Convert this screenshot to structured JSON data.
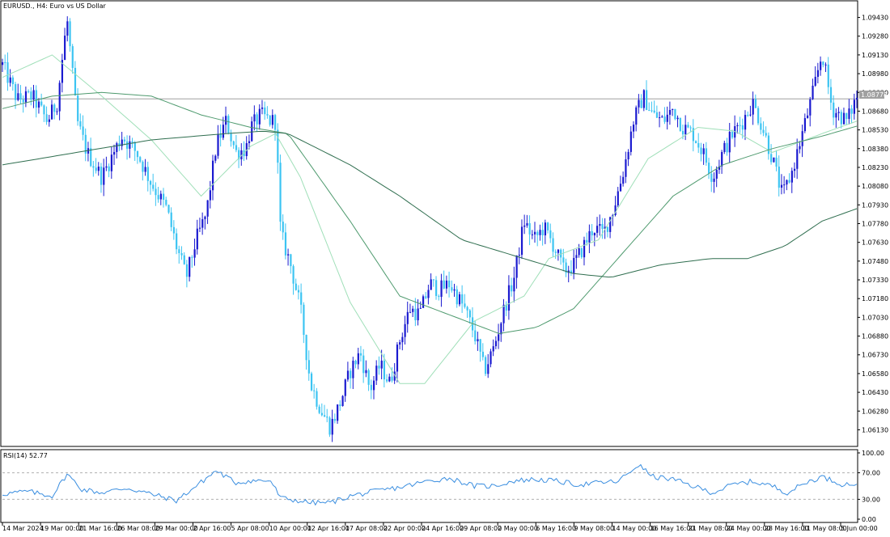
{
  "chart_data": {
    "type": "candlestick",
    "title": "EURUSD., H4:  Euro vs US Dollar",
    "current_price_label": "1.08778",
    "current_price": 1.08778,
    "ylim": [
      1.0601,
      1.0955
    ],
    "y_ticks": [
      "1.09430",
      "1.09280",
      "1.09130",
      "1.08980",
      "1.08830",
      "1.08680",
      "1.08530",
      "1.08380",
      "1.08230",
      "1.08080",
      "1.07930",
      "1.07780",
      "1.07630",
      "1.07480",
      "1.07330",
      "1.07180",
      "1.07030",
      "1.06880",
      "1.06730",
      "1.06580",
      "1.06430",
      "1.06280",
      "1.06130"
    ],
    "x_ticks": [
      "14 Mar 2024",
      "19 Mar 00:00",
      "21 Mar 16:00",
      "26 Mar 08:00",
      "29 Mar 00:00",
      "2 Apr 16:00",
      "5 Apr 08:00",
      "10 Apr 00:00",
      "12 Apr 16:00",
      "17 Apr 08:00",
      "22 Apr 00:00",
      "24 Apr 16:00",
      "29 Apr 08:00",
      "2 May 00:00",
      "6 May 16:00",
      "9 May 08:00",
      "14 May 00:00",
      "16 May 16:00",
      "21 May 08:00",
      "24 May 00:00",
      "28 May 16:00",
      "31 May 08:00",
      "5 Jun 00:00"
    ],
    "bar_count": 330,
    "bull_color": "#1a1ad0",
    "bear_color": "#3cc4f2",
    "ma_colors": [
      "#9fdfb8",
      "#4e9a6e",
      "#2f6e4f"
    ],
    "close_path": [
      [
        0,
        1.0905
      ],
      [
        6,
        1.0877
      ],
      [
        12,
        1.088
      ],
      [
        18,
        1.086
      ],
      [
        22,
        1.0875
      ],
      [
        26,
        1.0942
      ],
      [
        30,
        1.086
      ],
      [
        34,
        1.0835
      ],
      [
        40,
        1.0815
      ],
      [
        48,
        1.0848
      ],
      [
        54,
        1.0835
      ],
      [
        60,
        1.081
      ],
      [
        66,
        1.079
      ],
      [
        70,
        1.076
      ],
      [
        74,
        1.0735
      ],
      [
        78,
        1.0765
      ],
      [
        82,
        1.0785
      ],
      [
        86,
        1.084
      ],
      [
        90,
        1.086
      ],
      [
        94,
        1.0835
      ],
      [
        98,
        1.0838
      ],
      [
        100,
        1.0855
      ],
      [
        104,
        1.0865
      ],
      [
        108,
        1.086
      ],
      [
        110,
        1.086
      ],
      [
        112,
        1.077
      ],
      [
        116,
        1.0745
      ],
      [
        120,
        1.071
      ],
      [
        124,
        1.065
      ],
      [
        128,
        1.063
      ],
      [
        132,
        1.0615
      ],
      [
        136,
        1.0635
      ],
      [
        140,
        1.066
      ],
      [
        144,
        1.0675
      ],
      [
        148,
        1.0645
      ],
      [
        152,
        1.0665
      ],
      [
        156,
        1.065
      ],
      [
        160,
        1.0685
      ],
      [
        164,
        1.071
      ],
      [
        168,
        1.0705
      ],
      [
        172,
        1.073
      ],
      [
        176,
        1.0725
      ],
      [
        180,
        1.073
      ],
      [
        186,
        1.071
      ],
      [
        190,
        1.069
      ],
      [
        194,
        1.066
      ],
      [
        198,
        1.068
      ],
      [
        202,
        1.071
      ],
      [
        206,
        1.0735
      ],
      [
        210,
        1.078
      ],
      [
        214,
        1.0765
      ],
      [
        218,
        1.0775
      ],
      [
        222,
        1.076
      ],
      [
        226,
        1.074
      ],
      [
        230,
        1.0745
      ],
      [
        234,
        1.076
      ],
      [
        238,
        1.0775
      ],
      [
        242,
        1.077
      ],
      [
        246,
        1.079
      ],
      [
        250,
        1.082
      ],
      [
        254,
        1.086
      ],
      [
        258,
        1.088
      ],
      [
        262,
        1.0865
      ],
      [
        266,
        1.086
      ],
      [
        270,
        1.087
      ],
      [
        274,
        1.0855
      ],
      [
        278,
        1.085
      ],
      [
        282,
        1.0835
      ],
      [
        286,
        1.0815
      ],
      [
        290,
        1.0835
      ],
      [
        294,
        1.085
      ],
      [
        298,
        1.086
      ],
      [
        302,
        1.0875
      ],
      [
        306,
        1.0855
      ],
      [
        310,
        1.083
      ],
      [
        314,
        1.08
      ],
      [
        318,
        1.082
      ],
      [
        322,
        1.085
      ],
      [
        326,
        1.088
      ],
      [
        330,
        1.0915
      ],
      [
        334,
        1.087
      ],
      [
        340,
        1.086
      ],
      [
        344,
        1.088
      ]
    ],
    "ma_fast": [
      [
        0,
        1.0895
      ],
      [
        20,
        1.0913
      ],
      [
        40,
        1.088
      ],
      [
        60,
        1.0845
      ],
      [
        80,
        1.08
      ],
      [
        100,
        1.084
      ],
      [
        110,
        1.085
      ],
      [
        120,
        1.0815
      ],
      [
        140,
        1.0715
      ],
      [
        160,
        1.065
      ],
      [
        170,
        1.065
      ],
      [
        190,
        1.07
      ],
      [
        210,
        1.072
      ],
      [
        220,
        1.075
      ],
      [
        240,
        1.0765
      ],
      [
        260,
        1.083
      ],
      [
        280,
        1.0855
      ],
      [
        295,
        1.0852
      ],
      [
        310,
        1.0835
      ],
      [
        330,
        1.085
      ],
      [
        344,
        1.086
      ]
    ],
    "ma_mid": [
      [
        0,
        1.087
      ],
      [
        20,
        1.088
      ],
      [
        40,
        1.0883
      ],
      [
        60,
        1.088
      ],
      [
        80,
        1.0865
      ],
      [
        100,
        1.0855
      ],
      [
        115,
        1.085
      ],
      [
        140,
        1.078
      ],
      [
        160,
        1.072
      ],
      [
        180,
        1.0705
      ],
      [
        200,
        1.069
      ],
      [
        215,
        1.0695
      ],
      [
        230,
        1.071
      ],
      [
        250,
        1.0755
      ],
      [
        270,
        1.08
      ],
      [
        290,
        1.0825
      ],
      [
        310,
        1.0838
      ],
      [
        330,
        1.0848
      ],
      [
        344,
        1.0856
      ]
    ],
    "ma_slow": [
      [
        0,
        1.0825
      ],
      [
        30,
        1.0835
      ],
      [
        60,
        1.0845
      ],
      [
        90,
        1.085
      ],
      [
        105,
        1.0852
      ],
      [
        115,
        1.085
      ],
      [
        140,
        1.0825
      ],
      [
        160,
        1.08
      ],
      [
        185,
        1.0765
      ],
      [
        210,
        1.075
      ],
      [
        230,
        1.0738
      ],
      [
        245,
        1.0735
      ],
      [
        265,
        1.0745
      ],
      [
        285,
        1.075
      ],
      [
        300,
        1.075
      ],
      [
        315,
        1.076
      ],
      [
        330,
        1.078
      ],
      [
        344,
        1.079
      ]
    ],
    "rsi": {
      "label": "RSI(14) 52.77",
      "value": 52.77,
      "ylim": [
        0,
        100
      ],
      "levels": [
        70,
        30
      ],
      "y_ticks": [
        "100.00",
        "70.00",
        "30.00",
        "0.00"
      ],
      "color": "#3a8ee0",
      "path": [
        [
          0,
          38
        ],
        [
          10,
          42
        ],
        [
          20,
          35
        ],
        [
          26,
          68
        ],
        [
          32,
          45
        ],
        [
          40,
          40
        ],
        [
          50,
          47
        ],
        [
          60,
          38
        ],
        [
          70,
          28
        ],
        [
          78,
          50
        ],
        [
          86,
          73
        ],
        [
          94,
          55
        ],
        [
          100,
          58
        ],
        [
          108,
          58
        ],
        [
          112,
          32
        ],
        [
          124,
          25
        ],
        [
          132,
          25
        ],
        [
          140,
          35
        ],
        [
          150,
          42
        ],
        [
          160,
          48
        ],
        [
          172,
          58
        ],
        [
          180,
          62
        ],
        [
          190,
          50
        ],
        [
          198,
          50
        ],
        [
          206,
          58
        ],
        [
          214,
          60
        ],
        [
          222,
          58
        ],
        [
          232,
          52
        ],
        [
          240,
          55
        ],
        [
          248,
          57
        ],
        [
          256,
          82
        ],
        [
          262,
          64
        ],
        [
          270,
          60
        ],
        [
          278,
          50
        ],
        [
          286,
          40
        ],
        [
          294,
          52
        ],
        [
          302,
          57
        ],
        [
          310,
          50
        ],
        [
          316,
          40
        ],
        [
          324,
          56
        ],
        [
          330,
          64
        ],
        [
          338,
          53
        ],
        [
          344,
          52.77
        ]
      ]
    }
  }
}
